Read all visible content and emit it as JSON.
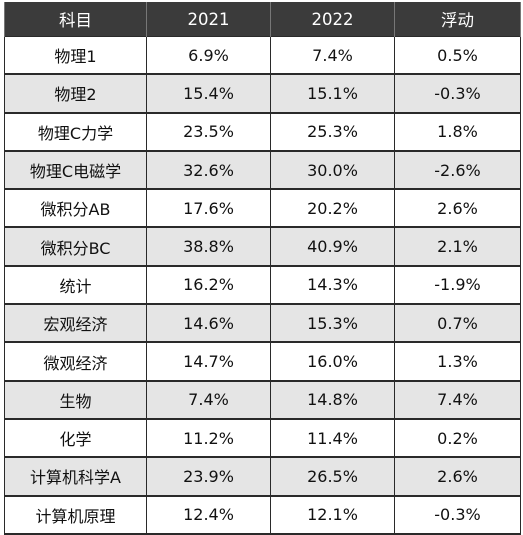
{
  "table": {
    "headers": [
      "科目",
      "2021",
      "2022",
      "浮动"
    ],
    "rows": [
      [
        "物理1",
        "6.9%",
        "7.4%",
        "0.5%"
      ],
      [
        "物理2",
        "15.4%",
        "15.1%",
        "-0.3%"
      ],
      [
        "物理C力学",
        "23.5%",
        "25.3%",
        "1.8%"
      ],
      [
        "物理C电磁学",
        "32.6%",
        "30.0%",
        "-2.6%"
      ],
      [
        "微积分AB",
        "17.6%",
        "20.2%",
        "2.6%"
      ],
      [
        "微积分BC",
        "38.8%",
        "40.9%",
        "2.1%"
      ],
      [
        "统计",
        "16.2%",
        "14.3%",
        "-1.9%"
      ],
      [
        "宏观经济",
        "14.6%",
        "15.3%",
        "0.7%"
      ],
      [
        "微观经济",
        "14.7%",
        "16.0%",
        "1.3%"
      ],
      [
        "生物",
        "7.4%",
        "14.8%",
        "7.4%"
      ],
      [
        "化学",
        "11.2%",
        "11.4%",
        "0.2%"
      ],
      [
        "计算机科学A",
        "23.9%",
        "26.5%",
        "2.6%"
      ],
      [
        "计算机原理",
        "12.4%",
        "12.1%",
        "-0.3%"
      ]
    ]
  },
  "colors": {
    "header_bg": "#3b3b3b",
    "header_text": "#ffffff",
    "row_alt_bg": "#e5e5e5",
    "row_bg": "#ffffff",
    "border": "#2a2a2a"
  }
}
